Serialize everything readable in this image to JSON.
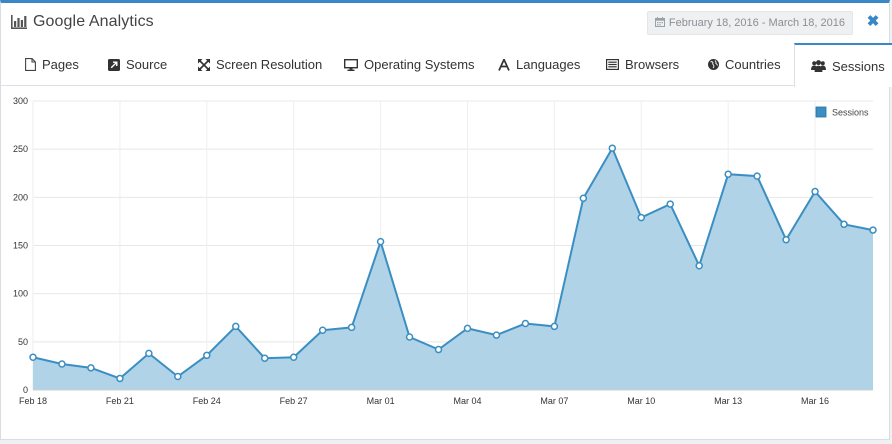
{
  "header": {
    "title": "Google Analytics",
    "date_range": "February 18, 2016 - March 18, 2016",
    "close_label": "✖"
  },
  "tabs": [
    {
      "label": "Pages",
      "icon": "file-icon"
    },
    {
      "label": "Source",
      "icon": "external-link-icon"
    },
    {
      "label": "Screen Resolution",
      "icon": "arrows-expand-icon"
    },
    {
      "label": "Operating Systems",
      "icon": "desktop-icon"
    },
    {
      "label": "Languages",
      "icon": "font-icon"
    },
    {
      "label": "Browsers",
      "icon": "list-icon"
    },
    {
      "label": "Countries",
      "icon": "globe-icon"
    },
    {
      "label": "Sessions",
      "icon": "users-icon",
      "active": true
    }
  ],
  "colors": {
    "accent": "#3a87c8",
    "area_fill": "#b0d3e8",
    "line": "#3b8ec2"
  },
  "chart_data": {
    "type": "area",
    "title": "",
    "xlabel": "",
    "ylabel": "",
    "ylim": [
      0,
      300
    ],
    "yticks": [
      "0",
      "50",
      "100",
      "150",
      "200",
      "250",
      "300"
    ],
    "grid": true,
    "legend_position": "top-right",
    "x_tick_labels": [
      "Feb 18",
      "Feb 21",
      "Feb 24",
      "Feb 27",
      "Mar 01",
      "Mar 04",
      "Mar 07",
      "Mar 10",
      "Mar 13",
      "Mar 16"
    ],
    "x_dates": [
      "2016-02-18",
      "2016-02-19",
      "2016-02-20",
      "2016-02-21",
      "2016-02-22",
      "2016-02-23",
      "2016-02-24",
      "2016-02-25",
      "2016-02-26",
      "2016-02-27",
      "2016-02-28",
      "2016-02-29",
      "2016-03-01",
      "2016-03-02",
      "2016-03-03",
      "2016-03-04",
      "2016-03-05",
      "2016-03-06",
      "2016-03-07",
      "2016-03-08",
      "2016-03-09",
      "2016-03-10",
      "2016-03-11",
      "2016-03-12",
      "2016-03-13",
      "2016-03-14",
      "2016-03-15",
      "2016-03-16",
      "2016-03-17",
      "2016-03-18"
    ],
    "series": [
      {
        "name": "Sessions",
        "values": [
          34,
          27,
          23,
          12,
          38,
          14,
          36,
          66,
          33,
          34,
          62,
          65,
          154,
          55,
          42,
          64,
          57,
          69,
          66,
          199,
          251,
          179,
          193,
          129,
          224,
          222,
          156,
          206,
          172,
          166
        ]
      }
    ]
  }
}
